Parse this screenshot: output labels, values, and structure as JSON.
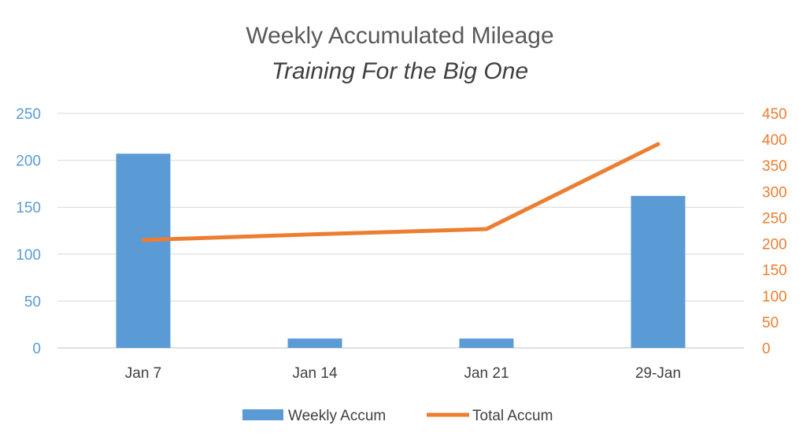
{
  "chart_data": {
    "type": "bar",
    "title": "Weekly Accumulated Mileage",
    "subtitle": "Training For the Big One",
    "categories": [
      "Jan 7",
      "Jan 14",
      "Jan 21",
      "29-Jan"
    ],
    "series": [
      {
        "name": "Weekly Accum",
        "type": "bar",
        "axis": "left",
        "color": "#5B9BD5",
        "values": [
          207,
          10,
          10,
          162
        ]
      },
      {
        "name": "Total Accum",
        "type": "line",
        "axis": "right",
        "color": "#ED7D31",
        "values": [
          207,
          218,
          228,
          391
        ]
      }
    ],
    "left_axis": {
      "ylim": [
        0,
        250
      ],
      "ticks": [
        "0",
        "50",
        "100",
        "150",
        "200",
        "250"
      ],
      "color": "#5B9BD5"
    },
    "right_axis": {
      "ylim": [
        0,
        450
      ],
      "ticks": [
        "0",
        "50",
        "100",
        "150",
        "200",
        "250",
        "300",
        "350",
        "400",
        "450"
      ],
      "color": "#ED7D31"
    },
    "grid": true,
    "legend": "bottom"
  }
}
